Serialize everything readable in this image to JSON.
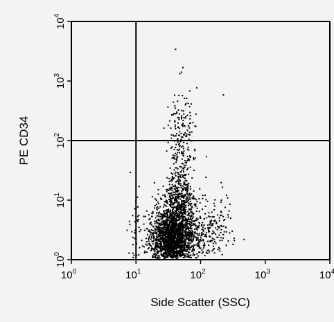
{
  "chart_data": {
    "type": "scatter",
    "title": "",
    "xlabel": "Side Scatter (SSC)",
    "ylabel": "PE CD34",
    "x_scale": "log",
    "y_scale": "log",
    "xlim": [
      1,
      10000
    ],
    "ylim": [
      1,
      10000
    ],
    "x_ticks": [
      {
        "base": "10",
        "exp": "0",
        "value": 1
      },
      {
        "base": "10",
        "exp": "1",
        "value": 10
      },
      {
        "base": "10",
        "exp": "2",
        "value": 100
      },
      {
        "base": "10",
        "exp": "3",
        "value": 1000
      },
      {
        "base": "10",
        "exp": "4",
        "value": 10000
      }
    ],
    "y_ticks": [
      {
        "base": "10",
        "exp": "0",
        "value": 1
      },
      {
        "base": "10",
        "exp": "1",
        "value": 10
      },
      {
        "base": "10",
        "exp": "2",
        "value": 100
      },
      {
        "base": "10",
        "exp": "3",
        "value": 1000
      },
      {
        "base": "10",
        "exp": "4",
        "value": 10000
      }
    ],
    "gates": {
      "x": 10,
      "y": 100
    },
    "grid": false,
    "point_color": "#000000",
    "populations": [
      {
        "x_center": 35,
        "y_center": 2.2,
        "x_spread_decades": 0.16,
        "y_spread_decades": 0.25,
        "count": 1800
      },
      {
        "x_center": 45,
        "y_center": 8,
        "x_spread_decades": 0.14,
        "y_spread_decades": 0.3,
        "count": 500
      },
      {
        "x_center": 60,
        "y_center": 3,
        "x_spread_decades": 0.28,
        "y_spread_decades": 0.3,
        "count": 400
      },
      {
        "x_center": 50,
        "y_center": 100,
        "x_spread_decades": 0.1,
        "y_spread_decades": 0.45,
        "count": 220
      },
      {
        "x_center": 150,
        "y_center": 3,
        "x_spread_decades": 0.12,
        "y_spread_decades": 0.25,
        "count": 90
      },
      {
        "x_center": 9.5,
        "y_center": 3,
        "x_spread_decades": 0.03,
        "y_spread_decades": 0.35,
        "count": 40
      }
    ],
    "outliers": [
      {
        "x": 40,
        "y": 3500
      },
      {
        "x": 220,
        "y": 600
      },
      {
        "x": 8,
        "y": 30
      },
      {
        "x": 120,
        "y": 55
      },
      {
        "x": 80,
        "y": 180
      }
    ]
  }
}
